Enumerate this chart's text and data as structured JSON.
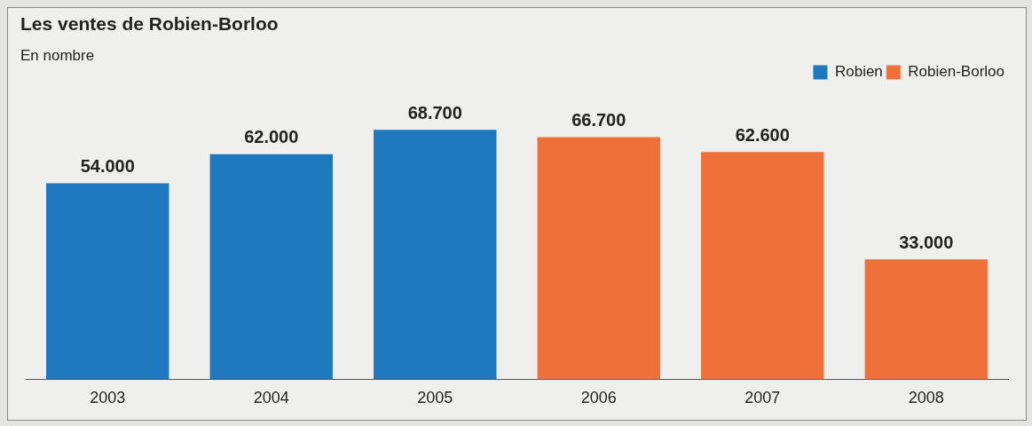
{
  "chart_data": {
    "type": "bar",
    "title": "Les ventes de Robien-Borloo",
    "subtitle": "En nombre",
    "categories": [
      "2003",
      "2004",
      "2005",
      "2006",
      "2007",
      "2008"
    ],
    "series": [
      {
        "name": "Robien",
        "color": "#1f78bd",
        "values": [
          54000,
          62000,
          68700,
          null,
          null,
          null
        ],
        "value_labels": [
          "54.000",
          "62.000",
          "68.700",
          null,
          null,
          null
        ]
      },
      {
        "name": "Robien-Borloo",
        "color": "#f0703a",
        "values": [
          null,
          null,
          null,
          66700,
          62600,
          33000
        ],
        "value_labels": [
          null,
          null,
          null,
          "66.700",
          "62.600",
          "33.000"
        ]
      }
    ],
    "legend": "top right",
    "tick_labels": "x"
  }
}
